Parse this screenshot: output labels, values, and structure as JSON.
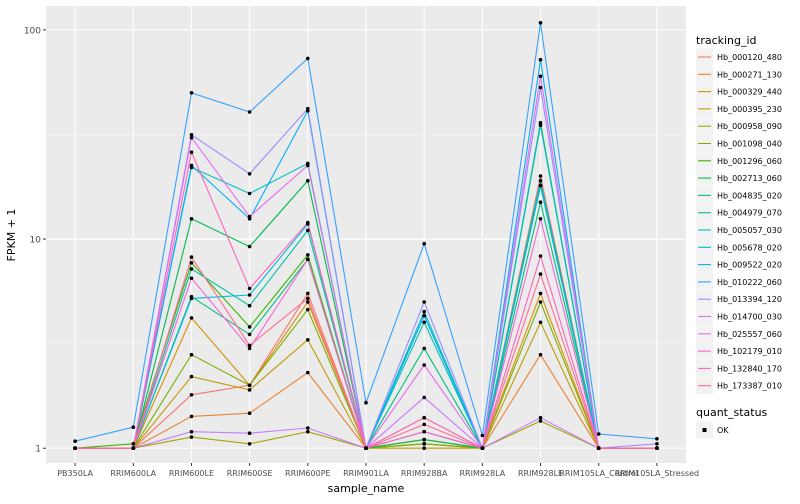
{
  "chart_data": {
    "type": "line",
    "xlabel": "sample_name",
    "ylabel": "FPKM + 1",
    "y_scale": "log10",
    "ylim": [
      0.85,
      130
    ],
    "y_ticks": [
      1,
      10,
      100
    ],
    "y_tick_labels": [
      "1",
      "10",
      "100"
    ],
    "grid": true,
    "legend_position": "right",
    "categories": [
      "PB350LA",
      "RRIM600LA",
      "RRIM600LE",
      "RRIM600SE",
      "RRIM600PE",
      "RRIM901LA",
      "RRIM928BA",
      "RRIM928LA",
      "RRIM928LE",
      "RRIM105LA_Control",
      "RRIM105LA_Stressed"
    ],
    "legend": {
      "title": "tracking_id",
      "items": [
        "Hb_000120_480",
        "Hb_000271_130",
        "Hb_000329_440",
        "Hb_000395_230",
        "Hb_000958_090",
        "Hb_001098_040",
        "Hb_001296_060",
        "Hb_002713_060",
        "Hb_004835_020",
        "Hb_004979_070",
        "Hb_005057_030",
        "Hb_005678_020",
        "Hb_009522_020",
        "Hb_010222_060",
        "Hb_013394_120",
        "Hb_014700_030",
        "Hb_025557_060",
        "Hb_102179_010",
        "Hb_132840_170",
        "Hb_173387_010"
      ]
    },
    "shape_legend": {
      "title": "quant_status",
      "items": [
        "OK"
      ]
    },
    "series": [
      {
        "name": "Hb_000120_480",
        "color": "#F8766D",
        "values": [
          1.0,
          1.0,
          1.8,
          2.0,
          5.5,
          1.0,
          1.4,
          1.0,
          20,
          1.0,
          1.0
        ]
      },
      {
        "name": "Hb_000271_130",
        "color": "#EA8331",
        "values": [
          1.0,
          1.0,
          1.42,
          1.47,
          2.3,
          1.0,
          1.05,
          1.0,
          2.8,
          1.0,
          1.0
        ]
      },
      {
        "name": "Hb_000329_440",
        "color": "#D89000",
        "values": [
          1.0,
          1.0,
          4.2,
          2.0,
          5.0,
          1.0,
          1.1,
          1.0,
          5.5,
          1.0,
          1.0
        ]
      },
      {
        "name": "Hb_000395_230",
        "color": "#C09B00",
        "values": [
          1.0,
          1.0,
          2.2,
          1.9,
          3.3,
          1.0,
          1.0,
          1.0,
          4.0,
          1.0,
          1.0
        ]
      },
      {
        "name": "Hb_000958_090",
        "color": "#A3A500",
        "values": [
          1.0,
          1.0,
          1.13,
          1.05,
          1.2,
          1.0,
          1.05,
          1.0,
          1.35,
          1.0,
          1.0
        ]
      },
      {
        "name": "Hb_001098_040",
        "color": "#7CAE00",
        "values": [
          1.0,
          1.0,
          2.8,
          2.0,
          4.6,
          1.0,
          1.05,
          1.0,
          5.0,
          1.0,
          1.0
        ]
      },
      {
        "name": "Hb_001296_060",
        "color": "#39B600",
        "values": [
          1.0,
          1.05,
          7.7,
          3.8,
          8.4,
          1.0,
          1.2,
          1.0,
          18,
          1.0,
          1.0
        ]
      },
      {
        "name": "Hb_002713_060",
        "color": "#00BB4E",
        "values": [
          1.0,
          1.0,
          12.5,
          9.2,
          19,
          1.0,
          1.1,
          1.0,
          36,
          1.0,
          1.0
        ]
      },
      {
        "name": "Hb_004835_020",
        "color": "#00BF7D",
        "values": [
          1.0,
          1.0,
          5.3,
          3.5,
          8.0,
          1.0,
          3.0,
          1.0,
          15,
          1.0,
          1.0
        ]
      },
      {
        "name": "Hb_004979_070",
        "color": "#00C1A3",
        "values": [
          1.0,
          1.0,
          7.2,
          4.8,
          11,
          1.0,
          4.0,
          1.0,
          19,
          1.0,
          1.0
        ]
      },
      {
        "name": "Hb_005057_030",
        "color": "#00BFC4",
        "values": [
          1.0,
          1.0,
          22,
          16.5,
          23,
          1.0,
          4.5,
          1.0,
          35,
          1.0,
          1.0
        ]
      },
      {
        "name": "Hb_005678_020",
        "color": "#00BAE0",
        "values": [
          1.0,
          1.0,
          5.2,
          5.4,
          11.8,
          1.0,
          4.3,
          1.0,
          18,
          1.0,
          1.0
        ]
      },
      {
        "name": "Hb_009522_020",
        "color": "#00B0F6",
        "values": [
          1.0,
          1.0,
          22.5,
          12.5,
          41,
          1.0,
          4.3,
          1.0,
          72,
          1.0,
          1.0
        ]
      },
      {
        "name": "Hb_010222_060",
        "color": "#35A2FF",
        "values": [
          1.08,
          1.26,
          50,
          40.5,
          73,
          1.65,
          9.5,
          1.15,
          108,
          1.17,
          1.11
        ]
      },
      {
        "name": "Hb_013394_120",
        "color": "#9590FF",
        "values": [
          1.0,
          1.0,
          31.5,
          20.5,
          42,
          1.0,
          5.0,
          1.0,
          53,
          1.0,
          1.05
        ]
      },
      {
        "name": "Hb_014700_030",
        "color": "#C77CFF",
        "values": [
          1.0,
          1.0,
          1.2,
          1.18,
          1.25,
          1.0,
          1.75,
          1.0,
          1.4,
          1.0,
          1.0
        ]
      },
      {
        "name": "Hb_025557_060",
        "color": "#E76BF3",
        "values": [
          1.0,
          1.0,
          30.5,
          12.8,
          22.5,
          1.0,
          2.5,
          1.0,
          60,
          1.0,
          1.0
        ]
      },
      {
        "name": "Hb_102179_010",
        "color": "#FA62DB",
        "values": [
          1.0,
          1.0,
          6.5,
          3.0,
          8.0,
          1.0,
          1.2,
          1.0,
          12.5,
          1.0,
          1.0
        ]
      },
      {
        "name": "Hb_132840_170",
        "color": "#FF62BC",
        "values": [
          1.0,
          1.0,
          26,
          5.8,
          12,
          1.0,
          1.4,
          1.0,
          8.3,
          1.0,
          1.0
        ]
      },
      {
        "name": "Hb_173387_010",
        "color": "#FF6C91",
        "values": [
          1.0,
          1.0,
          8.2,
          3.1,
          5.2,
          1.0,
          1.3,
          1.0,
          6.8,
          1.0,
          1.0
        ]
      }
    ]
  }
}
